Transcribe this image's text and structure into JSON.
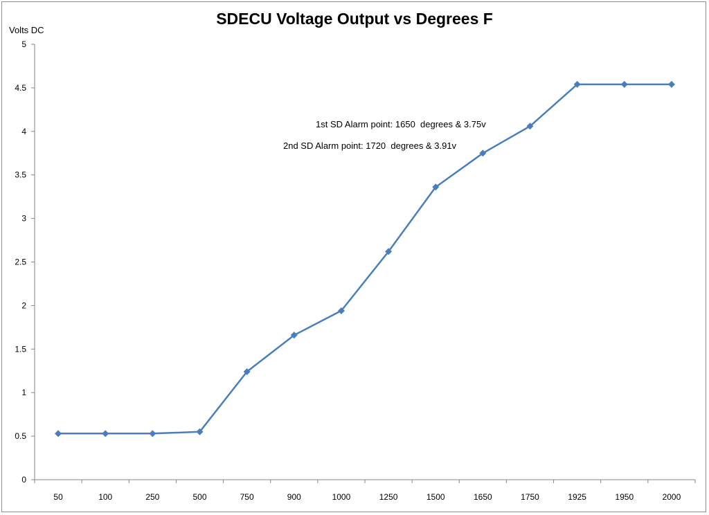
{
  "chart_data": {
    "type": "line",
    "title": "SDECU Voltage Output vs Degrees F",
    "xlabel": "",
    "ylabel": "Volts DC",
    "categories": [
      "50",
      "100",
      "250",
      "500",
      "750",
      "900",
      "1000",
      "1250",
      "1500",
      "1650",
      "1750",
      "1925",
      "1950",
      "2000"
    ],
    "series": [
      {
        "values": [
          0.53,
          0.53,
          0.53,
          0.55,
          1.24,
          1.66,
          1.94,
          2.62,
          3.36,
          3.75,
          4.06,
          4.54,
          4.54,
          4.54
        ]
      }
    ],
    "ylim": [
      0,
      5
    ],
    "yticks": [
      "0",
      "0.5",
      "1",
      "1.5",
      "2",
      "2.5",
      "3",
      "3.5",
      "4",
      "4.5",
      "5"
    ],
    "grid": false,
    "legend": "none",
    "line_color": "#4a7ebb",
    "annotations": [
      "2nd SD Alarm point: 1720  degrees & 3.91v",
      "1st SD Alarm point: 1650  degrees & 3.75v"
    ]
  }
}
